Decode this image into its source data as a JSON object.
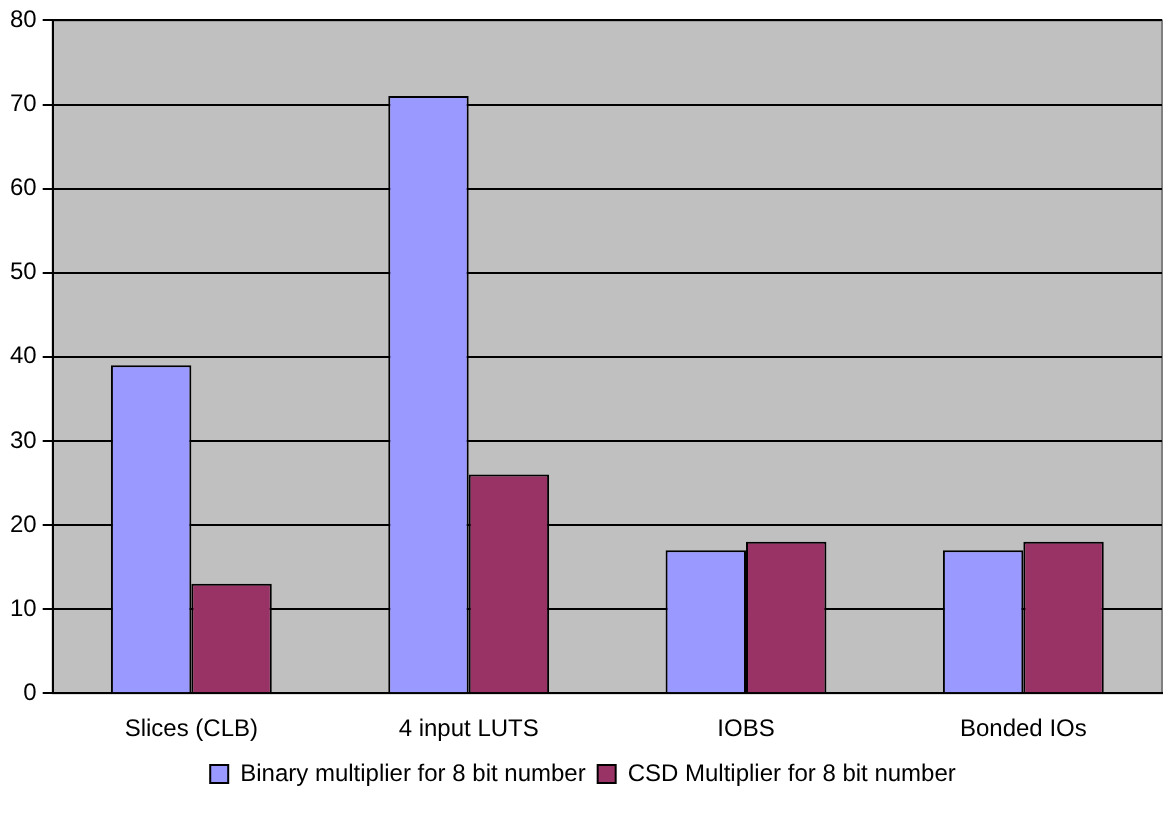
{
  "chart_data": {
    "type": "bar",
    "categories": [
      "Slices (CLB)",
      "4 input LUTS",
      "IOBS",
      "Bonded IOs"
    ],
    "series": [
      {
        "name": "Binary multiplier for 8 bit number",
        "color": "#9999ff",
        "values": [
          39,
          71,
          17,
          17
        ]
      },
      {
        "name": "CSD Multiplier for 8 bit number",
        "color": "#993366",
        "values": [
          13,
          26,
          18,
          18
        ]
      }
    ],
    "ylim": [
      0,
      80
    ],
    "yticks": [
      0,
      10,
      20,
      30,
      40,
      50,
      60,
      70,
      80
    ],
    "grid": "y",
    "legend": "bottom"
  }
}
